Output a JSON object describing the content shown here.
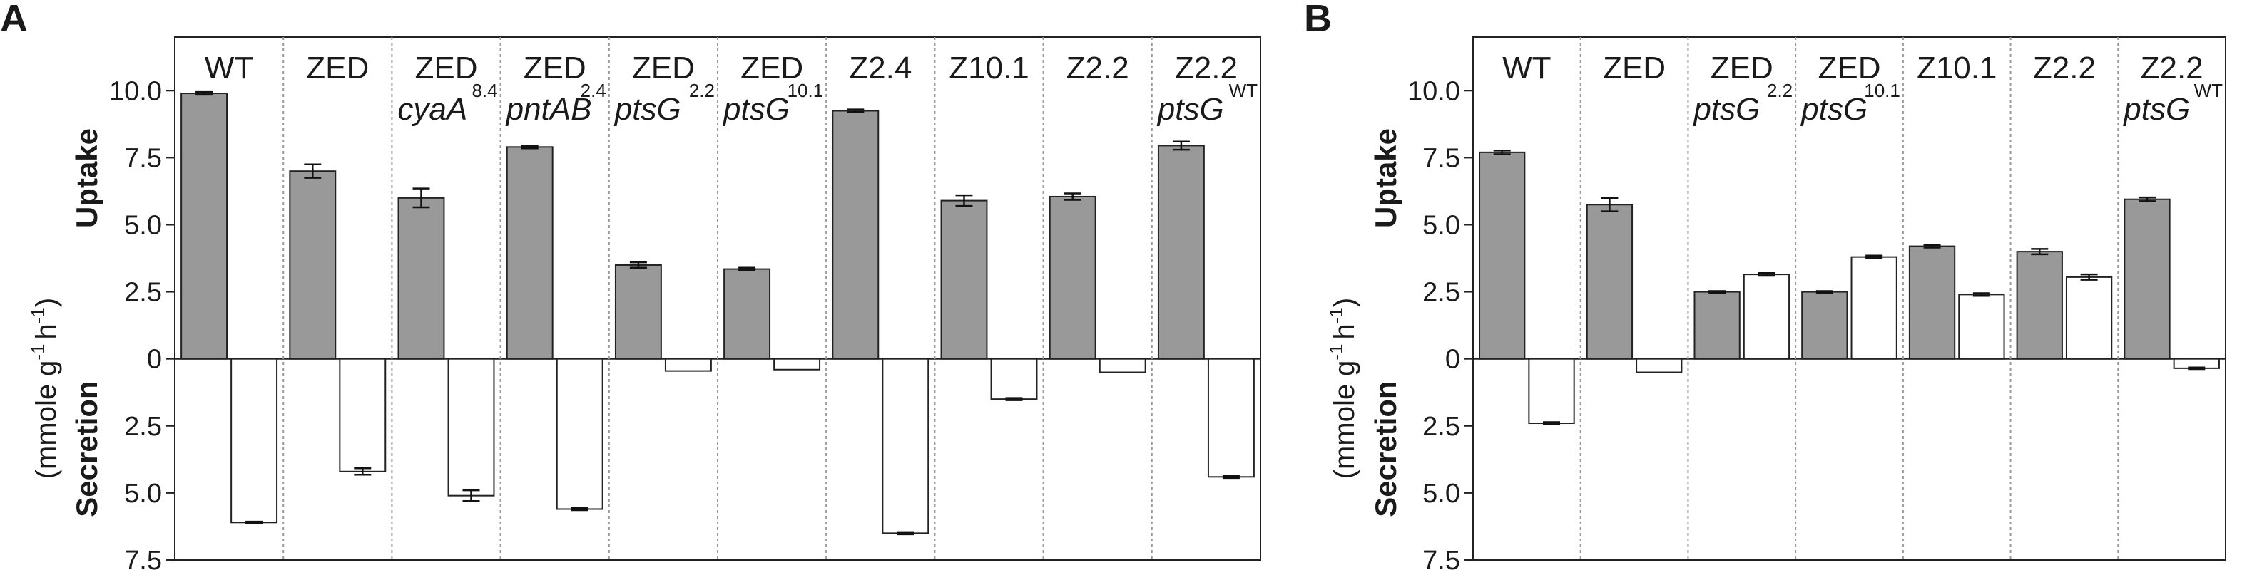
{
  "chart_data": [
    {
      "type": "bar",
      "panel": "A",
      "ylabel_top": "Uptake",
      "ylabel_bottom": "Secretion",
      "ylabel_unit": "(mmole g",
      "ylabel_unit_exp1": "-1",
      "ylabel_unit_mid": "h",
      "ylabel_unit_exp2": "-1",
      "ylabel_unit_end": ")",
      "ylim": [
        -7.5,
        12.0
      ],
      "yticks": [
        -7.5,
        -5.0,
        -2.5,
        0,
        2.5,
        5.0,
        7.5,
        10.0
      ],
      "ytick_labels": [
        "7.5",
        "5.0",
        "2.5",
        "0",
        "2.5",
        "5.0",
        "7.5",
        "10.0"
      ],
      "categories": [
        {
          "name": "WT",
          "genotype": "",
          "sup": ""
        },
        {
          "name": "ZED",
          "genotype": "",
          "sup": ""
        },
        {
          "name": "ZED",
          "genotype": "cyaA",
          "sup": "8.4"
        },
        {
          "name": "ZED",
          "genotype": "pntAB",
          "sup": "2.4"
        },
        {
          "name": "ZED",
          "genotype": "ptsG",
          "sup": "2.2"
        },
        {
          "name": "ZED",
          "genotype": "ptsG",
          "sup": "10.1"
        },
        {
          "name": "Z2.4",
          "genotype": "",
          "sup": ""
        },
        {
          "name": "Z10.1",
          "genotype": "",
          "sup": ""
        },
        {
          "name": "Z2.2",
          "genotype": "",
          "sup": ""
        },
        {
          "name": "Z2.2",
          "genotype": "ptsG",
          "sup": "WT"
        }
      ],
      "series": [
        {
          "fill": "#999999",
          "values": [
            9.9,
            7.0,
            6.0,
            7.9,
            3.5,
            3.35,
            9.25,
            5.9,
            6.05,
            7.95
          ],
          "errors": [
            0.05,
            0.25,
            0.35,
            0.05,
            0.1,
            0.05,
            0.05,
            0.2,
            0.12,
            0.15
          ]
        },
        {
          "fill": "#ffffff",
          "values": [
            -6.1,
            -4.2,
            -5.1,
            -5.6,
            -0.45,
            -0.4,
            -6.5,
            -1.5,
            -0.5,
            -4.4
          ],
          "errors": [
            0.03,
            0.12,
            0.2,
            0.04,
            0.0,
            0.0,
            0.04,
            0.04,
            0.0,
            0.04
          ]
        }
      ]
    },
    {
      "type": "bar",
      "panel": "B",
      "ylabel_top": "Uptake",
      "ylabel_bottom": "Secretion",
      "ylabel_unit": "(mmole g",
      "ylabel_unit_exp1": "-1",
      "ylabel_unit_mid": "h",
      "ylabel_unit_exp2": "-1",
      "ylabel_unit_end": ")",
      "ylim": [
        -7.5,
        12.0
      ],
      "yticks": [
        -7.5,
        -5.0,
        -2.5,
        0,
        2.5,
        5.0,
        7.5,
        10.0
      ],
      "ytick_labels": [
        "7.5",
        "5.0",
        "2.5",
        "0",
        "2.5",
        "5.0",
        "7.5",
        "10.0"
      ],
      "categories": [
        {
          "name": "WT",
          "genotype": "",
          "sup": ""
        },
        {
          "name": "ZED",
          "genotype": "",
          "sup": ""
        },
        {
          "name": "ZED",
          "genotype": "ptsG",
          "sup": "2.2"
        },
        {
          "name": "ZED",
          "genotype": "ptsG",
          "sup": "10.1"
        },
        {
          "name": "Z10.1",
          "genotype": "",
          "sup": ""
        },
        {
          "name": "Z2.2",
          "genotype": "",
          "sup": ""
        },
        {
          "name": "Z2.2",
          "genotype": "ptsG",
          "sup": "WT"
        }
      ],
      "series": [
        {
          "fill": "#999999",
          "values": [
            7.7,
            5.75,
            2.5,
            2.5,
            4.2,
            4.0,
            5.95
          ],
          "errors": [
            0.07,
            0.25,
            0.03,
            0.03,
            0.05,
            0.1,
            0.07
          ]
        },
        {
          "fill": "#ffffff",
          "values": [
            -2.4,
            -0.5,
            3.15,
            3.8,
            2.4,
            3.05,
            -0.35
          ],
          "errors": [
            0.04,
            0.0,
            0.05,
            0.05,
            0.05,
            0.1,
            0.03
          ]
        }
      ]
    }
  ]
}
